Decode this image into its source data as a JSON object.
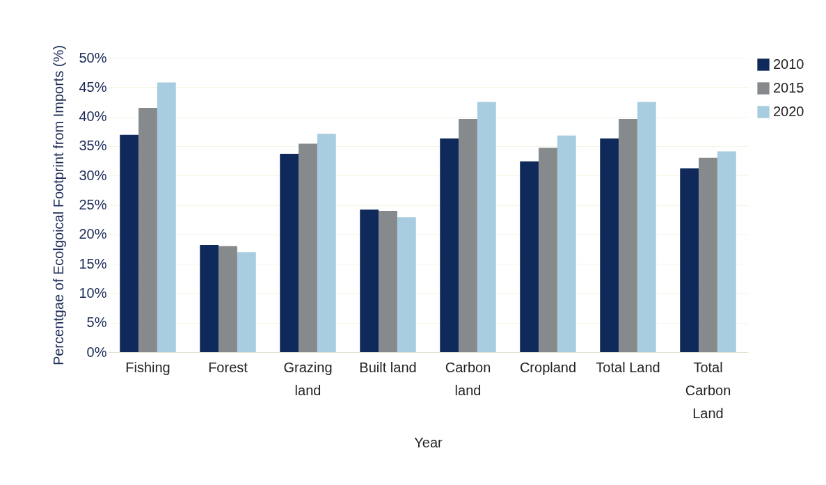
{
  "chart_data": {
    "type": "bar",
    "xlabel": "Year",
    "ylabel": "Percentgae of Ecolgoical Footprint from Imports (%)",
    "categories": [
      "Fishing",
      "Forest",
      "Grazing land",
      "Built land",
      "Carbon land",
      "Cropland",
      "Total Land",
      "Total Carbon Land"
    ],
    "series": [
      {
        "name": "2010",
        "color": "#0f2a5a",
        "values": [
          36.9,
          18.2,
          33.7,
          24.2,
          36.3,
          32.4,
          36.3,
          31.2
        ]
      },
      {
        "name": "2015",
        "color": "#868a8c",
        "values": [
          41.5,
          18.0,
          35.4,
          24.0,
          39.6,
          34.7,
          39.6,
          33.0
        ]
      },
      {
        "name": "2020",
        "color": "#a8cde0",
        "values": [
          45.8,
          17.0,
          37.1,
          22.9,
          42.5,
          36.8,
          42.5,
          34.1
        ]
      }
    ],
    "ylim": [
      0,
      50
    ],
    "yticks": [
      {
        "value": 0,
        "label": "0%"
      },
      {
        "value": 5,
        "label": "5%"
      },
      {
        "value": 10,
        "label": "10%"
      },
      {
        "value": 15,
        "label": "15%"
      },
      {
        "value": 20,
        "label": "20%"
      },
      {
        "value": 25,
        "label": "25%"
      },
      {
        "value": 30,
        "label": "30%"
      },
      {
        "value": 35,
        "label": "35%"
      },
      {
        "value": 40,
        "label": "40%"
      },
      {
        "value": 45,
        "label": "45%"
      },
      {
        "value": 50,
        "label": "50%"
      }
    ],
    "grid": "y",
    "legend": "right"
  }
}
